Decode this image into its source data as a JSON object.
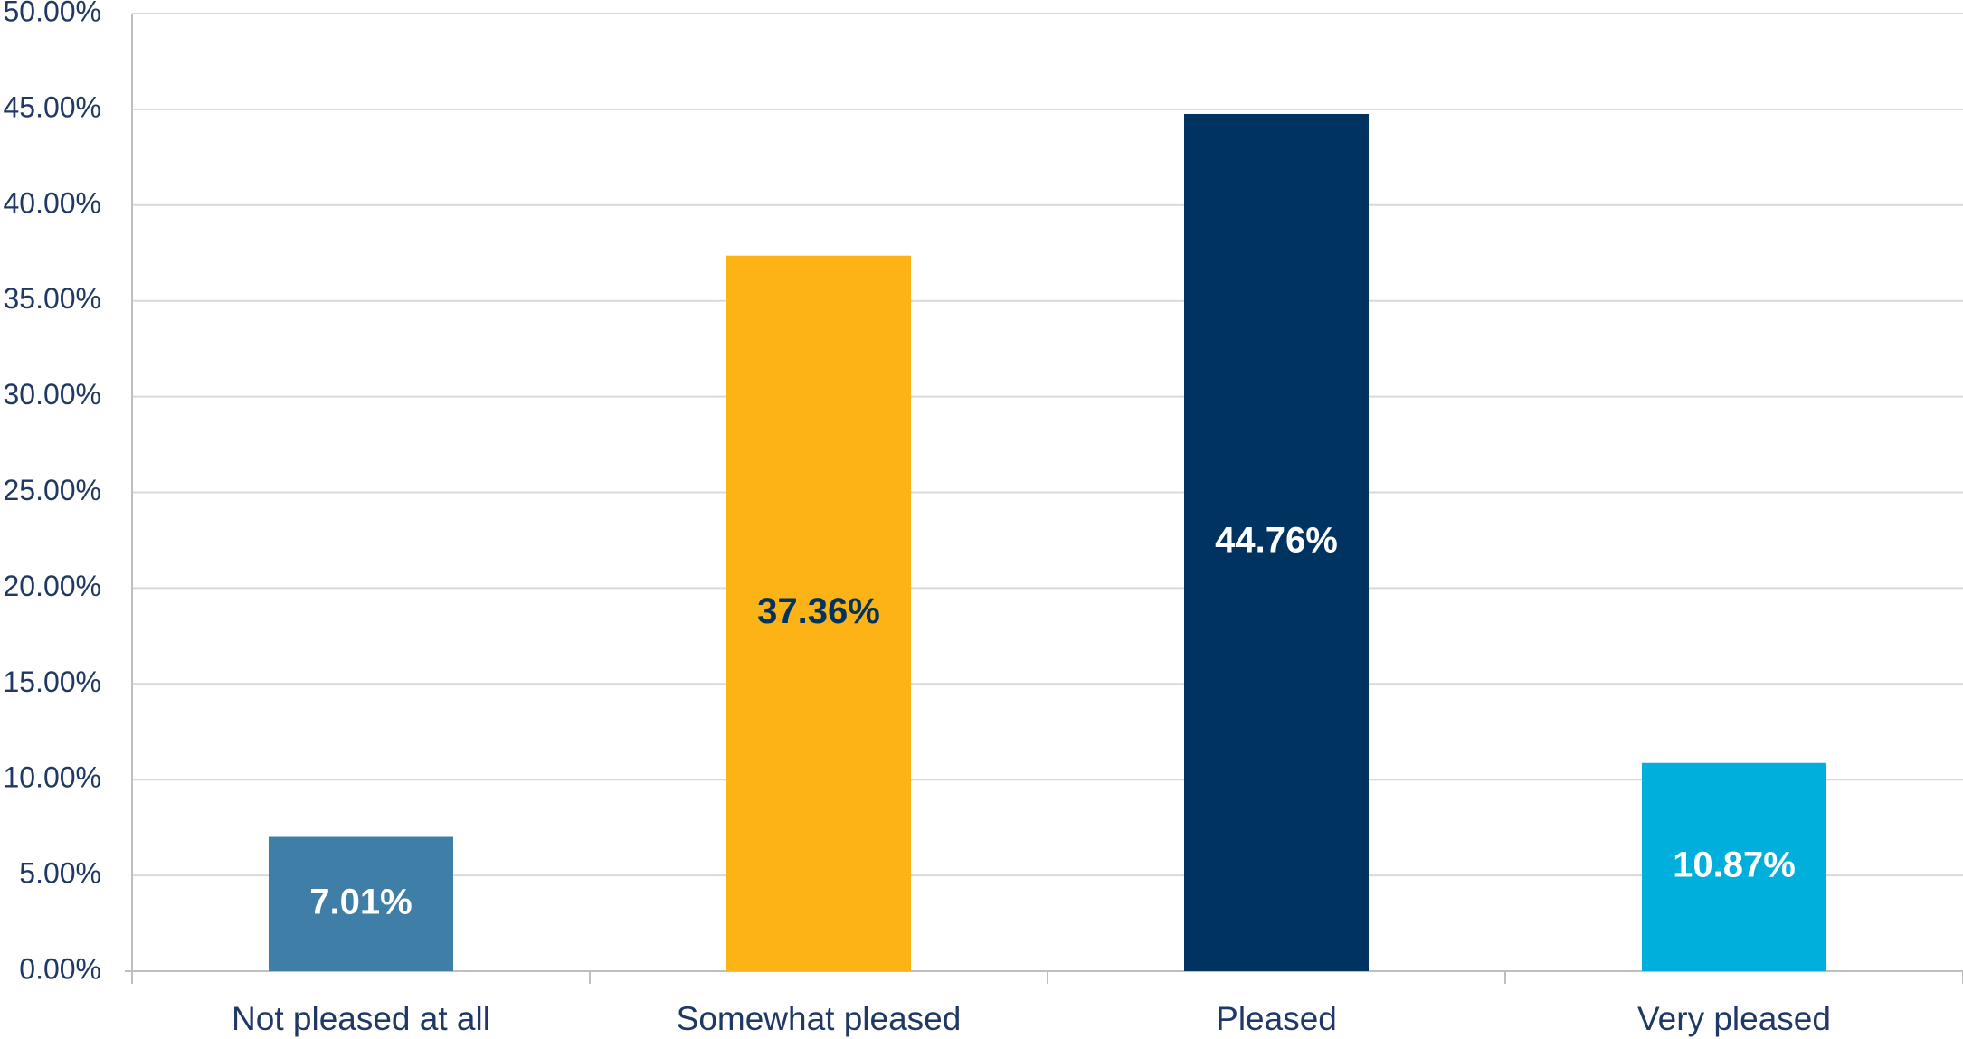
{
  "chart_data": {
    "type": "bar",
    "title": "",
    "xlabel": "",
    "ylabel": "",
    "categories": [
      "Not pleased at all",
      "Somewhat pleased",
      "Pleased",
      "Very pleased"
    ],
    "values": [
      7.01,
      37.36,
      44.76,
      10.87
    ],
    "data_labels": [
      "7.01%",
      "37.36%",
      "44.76%",
      "10.87%"
    ],
    "bar_colors": [
      "#3f7ea6",
      "#fbb316",
      "#003360",
      "#00afdb"
    ],
    "label_colors": [
      "#ffffff",
      "#003360",
      "#ffffff",
      "#ffffff"
    ],
    "ylim": [
      0,
      50
    ],
    "yticks": [
      0,
      5,
      10,
      15,
      20,
      25,
      30,
      35,
      40,
      45,
      50
    ],
    "ytick_labels": [
      "0.00%",
      "5.00%",
      "10.00%",
      "15.00%",
      "20.00%",
      "25.00%",
      "30.00%",
      "35.00%",
      "40.00%",
      "45.00%",
      "50.00%"
    ],
    "grid": true,
    "legend": "none",
    "colors": {
      "text": "#1f3864",
      "grid": "#d9d9d9",
      "axis": "#bfbfbf"
    }
  }
}
